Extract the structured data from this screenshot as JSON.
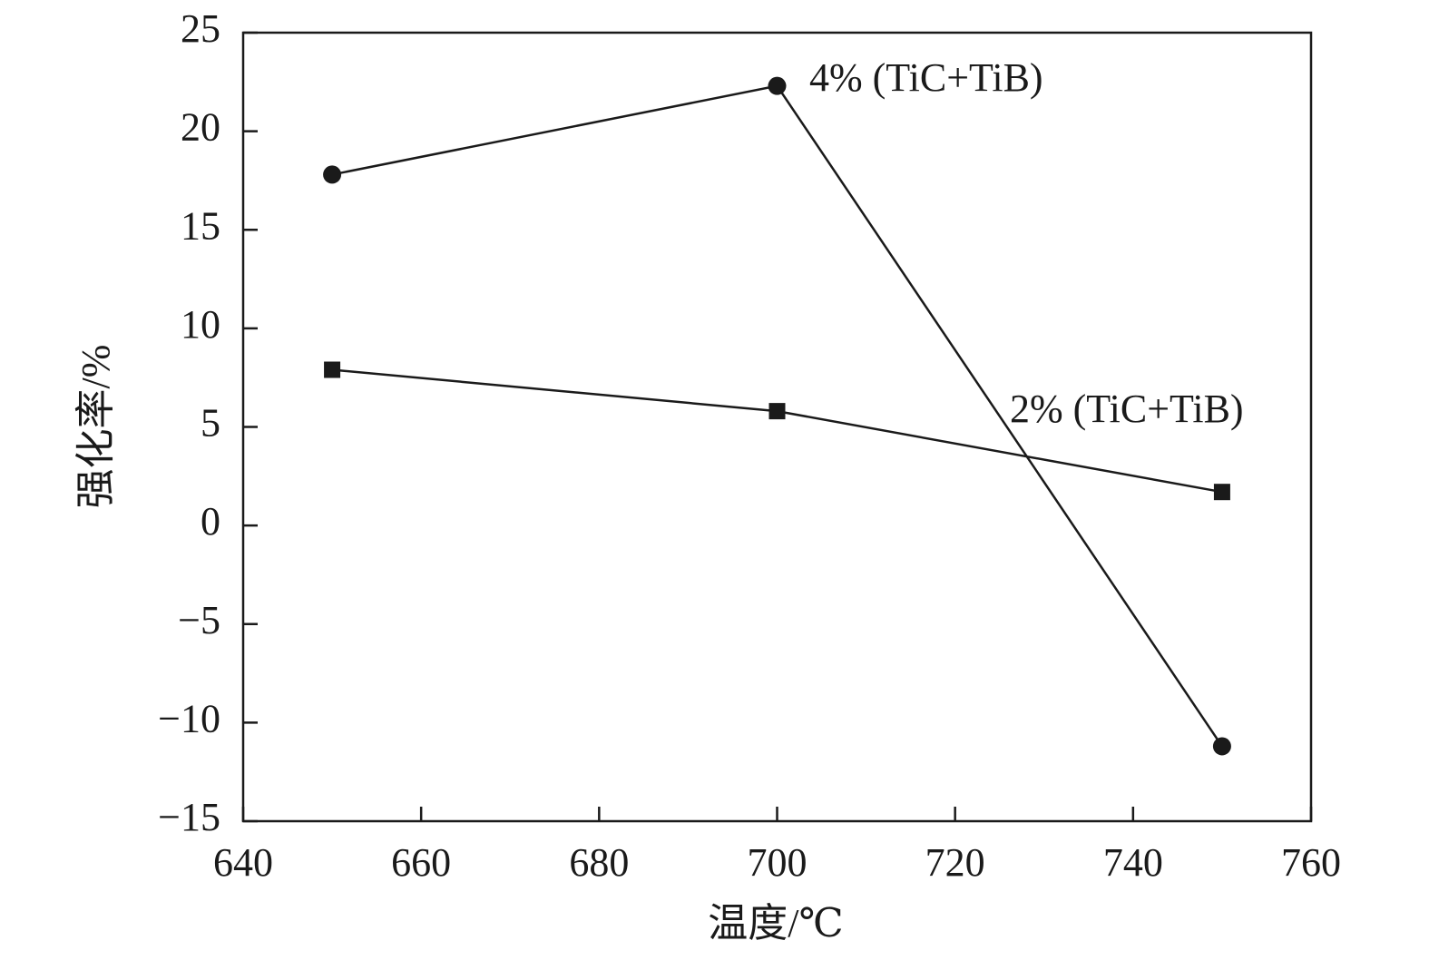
{
  "chart_data": {
    "type": "line",
    "x_label": "温度/℃",
    "y_label": "强化率/%",
    "x": [
      650,
      700,
      750
    ],
    "series": [
      {
        "name": "4% (TiC+TiB)",
        "color": "#1a1a1a",
        "marker": "circle",
        "values": [
          17.8,
          22.3,
          -11.2
        ]
      },
      {
        "name": "2% (TiC+TiB)",
        "color": "#1a1a1a",
        "marker": "square",
        "values": [
          7.9,
          5.8,
          1.7
        ]
      }
    ],
    "xlim": [
      640,
      760
    ],
    "xticks": [
      640,
      660,
      680,
      700,
      720,
      740,
      760
    ],
    "ylim": [
      -15,
      25
    ],
    "yticks": [
      {
        "value": -15,
        "label": "−15"
      },
      {
        "value": -10,
        "label": "−10"
      },
      {
        "value": -5,
        "label": "−5"
      },
      0,
      5,
      10,
      15,
      20,
      25
    ],
    "grid": false
  }
}
